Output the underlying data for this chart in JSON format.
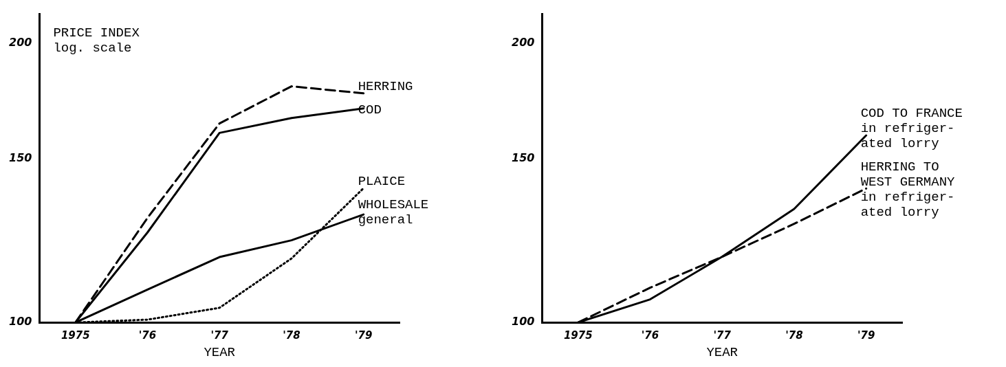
{
  "chart_data": [
    {
      "type": "line",
      "ylabel": "PRICE INDEX\nlog. scale",
      "xlabel": "YEAR",
      "categories": [
        "1975",
        "'76",
        "'77",
        "'78",
        "'79"
      ],
      "log": "y",
      "ylim": [
        100,
        215
      ],
      "yticks": [
        100,
        150,
        200
      ],
      "grid": false,
      "marker": "none",
      "series": [
        {
          "name": "HERRING",
          "color": "#000000",
          "line_style": "dashed",
          "values": [
            100,
            129.6,
            163.8,
            179.6,
            176.5
          ]
        },
        {
          "name": "COD",
          "color": "#000000",
          "line_style": "solid",
          "values": [
            100,
            125,
            160,
            166,
            170
          ]
        },
        {
          "name": "PLAICE",
          "color": "#000000",
          "line_style": "dotted",
          "values": [
            100,
            100.7,
            103.7,
            117.2,
            139.5
          ]
        },
        {
          "name": "WHOLESALE\ngeneral",
          "color": "#000000",
          "line_style": "solid",
          "values": [
            100,
            108.5,
            117.6,
            122.6,
            130.7
          ]
        }
      ]
    },
    {
      "type": "line",
      "xlabel": "YEAR",
      "categories": [
        "1975",
        "'76",
        "'77",
        "'78",
        "'79"
      ],
      "log": "y",
      "ylim": [
        100,
        215
      ],
      "yticks": [
        100,
        150,
        200
      ],
      "grid": false,
      "marker": "none",
      "series": [
        {
          "name": "COD TO FRANCE\nin refriger-\nated lorry",
          "color": "#000000",
          "line_style": "solid",
          "values": [
            100,
            105.9,
            117.7,
            132.5,
            159
          ]
        },
        {
          "name": "HERRING TO\nWEST GERMANY\nin refriger-\nated lorry",
          "color": "#000000",
          "line_style": "dashed",
          "values": [
            100,
            109,
            117.7,
            127.7,
            139.4
          ]
        }
      ]
    }
  ]
}
